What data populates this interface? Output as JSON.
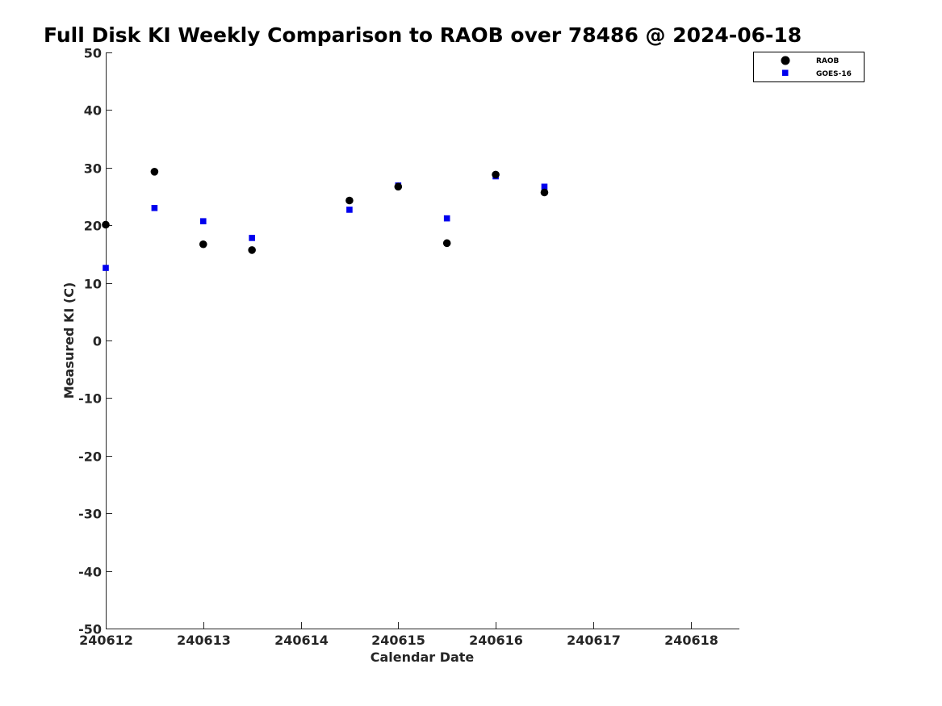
{
  "chart_data": {
    "type": "scatter",
    "title": "Full Disk KI Weekly Comparison to RAOB over 78486 @ 2024-06-18",
    "xlabel": "Calendar Date",
    "ylabel": "Measured KI (C)",
    "xlim": [
      240612,
      240618.5
    ],
    "ylim": [
      -50,
      50
    ],
    "xticks": [
      240612,
      240613,
      240614,
      240615,
      240616,
      240617,
      240618
    ],
    "xtick_labels": [
      "240612",
      "240613",
      "240614",
      "240615",
      "240616",
      "240617",
      "240618"
    ],
    "yticks": [
      -50,
      -40,
      -30,
      -20,
      -10,
      0,
      10,
      20,
      30,
      40,
      50
    ],
    "ytick_labels": [
      "-50",
      "-40",
      "-30",
      "-20",
      "-10",
      "0",
      "10",
      "20",
      "30",
      "40",
      "50"
    ],
    "grid": false,
    "legend_position": "top-right, outside plot",
    "series": [
      {
        "name": "RAOB",
        "marker": "circle",
        "color": "#000000",
        "x": [
          240612,
          240612.5,
          240613,
          240613.5,
          240614.5,
          240615,
          240615.5,
          240616,
          240616.5
        ],
        "y": [
          20.1,
          29.3,
          16.7,
          15.7,
          24.3,
          26.7,
          16.9,
          28.8,
          25.7
        ]
      },
      {
        "name": "GOES-16",
        "marker": "square",
        "color": "#0000ee",
        "x": [
          240612,
          240612.5,
          240613,
          240613.5,
          240614.5,
          240615,
          240615.5,
          240616,
          240616.5
        ],
        "y": [
          12.6,
          23.0,
          20.7,
          17.8,
          22.7,
          26.9,
          21.2,
          28.5,
          26.7
        ]
      }
    ]
  }
}
